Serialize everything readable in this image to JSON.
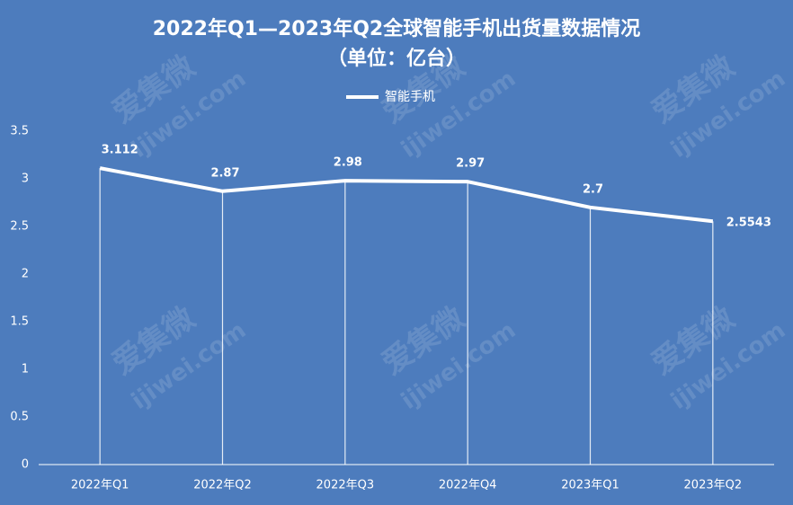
{
  "chart_data": {
    "type": "line",
    "title": "2022年Q1—2023年Q2全球智能手机出货量数据情况",
    "subtitle": "（单位：亿台）",
    "categories": [
      "2022年Q1",
      "2022年Q2",
      "2022年Q3",
      "2022年Q4",
      "2023年Q1",
      "2023年Q2"
    ],
    "series": [
      {
        "name": "智能手机",
        "color": "#ffffff",
        "values": [
          3.112,
          2.87,
          2.98,
          2.97,
          2.7,
          2.5543
        ]
      }
    ],
    "ylim": [
      0,
      3.5
    ],
    "yticks": [
      0,
      0.5,
      1,
      1.5,
      2,
      2.5,
      3,
      3.5
    ],
    "drop_lines": true,
    "legend": "top",
    "watermark": {
      "name": "爱集微",
      "site": "ijiwei.com"
    }
  }
}
